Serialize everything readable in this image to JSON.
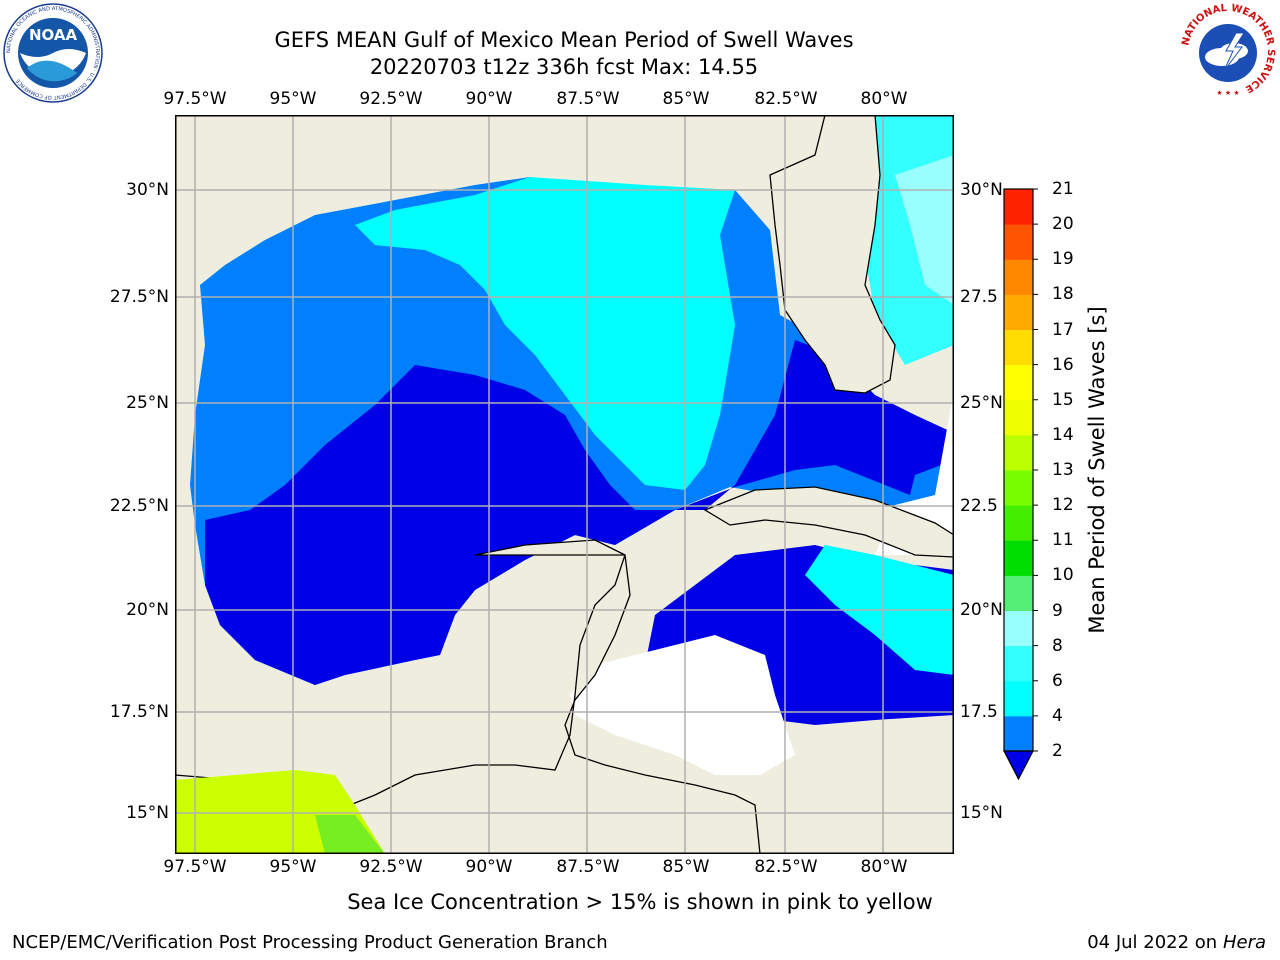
{
  "title": {
    "line1": "GEFS MEAN Gulf of Mexico Mean Period of Swell Waves",
    "line2": "20220703 t12z 336h fcst   Max: 14.55"
  },
  "map": {
    "lon_ticks": [
      "97.5°W",
      "95°W",
      "92.5°W",
      "90°W",
      "87.5°W",
      "85°W",
      "82.5°W",
      "80°W"
    ],
    "lat_ticks_left": [
      "30°N",
      "27.5°N",
      "25°N",
      "22.5°N",
      "20°N",
      "17.5°N",
      "15°N"
    ],
    "lat_ticks_right": [
      "30°N",
      "27.5",
      "25°N",
      "22.5",
      "20°N",
      "17.5",
      "15°N"
    ],
    "land_color": "#efedde",
    "no_data_color": "#ffffff",
    "grid_color": "#b0b0b0"
  },
  "colorbar": {
    "title": "Mean Period of Swell Waves [s]",
    "levels": [
      "21",
      "20",
      "19",
      "18",
      "17",
      "16",
      "15",
      "14",
      "13",
      "12",
      "11",
      "10",
      "9",
      "8",
      "6",
      "4",
      "2"
    ],
    "colors": [
      "#0000e6",
      "#0080ff",
      "#00ffff",
      "#33ffff",
      "#99ffff",
      "#55ee77",
      "#00dd00",
      "#44ee00",
      "#77ff00",
      "#bbff00",
      "#eeff00",
      "#ffff00",
      "#ffdd00",
      "#ffaa00",
      "#ff8800",
      "#ff5500",
      "#ff2200",
      "#ff0000"
    ]
  },
  "caption": "Sea Ice Concentration > 15% is shown in pink to yellow",
  "footer": {
    "left": "NCEP/EMC/Verification Post Processing Product Generation Branch",
    "right_date": "04 Jul 2022 on",
    "right_host": "Hera"
  },
  "logos": {
    "noaa_text": "NOAA",
    "noaa_ring": "NATIONAL OCEANIC AND ATMOSPHERIC ADMINISTRATION · U.S. DEPARTMENT OF COMMERCE",
    "nws_ring": "NATIONAL WEATHER SERVICE"
  }
}
